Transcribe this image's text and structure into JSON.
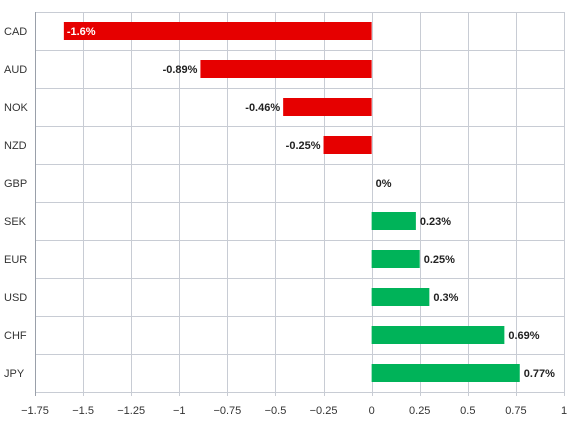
{
  "chart_data": {
    "type": "bar",
    "orientation": "horizontal",
    "categories": [
      "CAD",
      "AUD",
      "NOK",
      "NZD",
      "GBP",
      "SEK",
      "EUR",
      "USD",
      "CHF",
      "JPY"
    ],
    "values": [
      -1.6,
      -0.89,
      -0.46,
      -0.25,
      0,
      0.23,
      0.25,
      0.3,
      0.69,
      0.77
    ],
    "value_labels": [
      "-1.6%",
      "-0.89%",
      "-0.46%",
      "-0.25%",
      "0%",
      "0.23%",
      "0.25%",
      "0.3%",
      "0.69%",
      "0.77%"
    ],
    "x_ticks": [
      -1.75,
      -1.5,
      -1.25,
      -1,
      -0.75,
      -0.5,
      -0.25,
      0,
      0.25,
      0.5,
      0.75,
      1
    ],
    "x_tick_labels": [
      "−1.75",
      "−1.5",
      "−1.25",
      "−1",
      "−0.75",
      "−0.5",
      "−0.25",
      "0",
      "0.25",
      "0.5",
      "0.75",
      "1"
    ],
    "xlim": [
      -1.75,
      1
    ],
    "title": "",
    "xlabel": "",
    "ylabel": "",
    "grid": true,
    "colors": {
      "negative": "#e60000",
      "positive": "#00b359",
      "grid": "#c8ccd4",
      "axis": "#9aa0aa"
    }
  }
}
